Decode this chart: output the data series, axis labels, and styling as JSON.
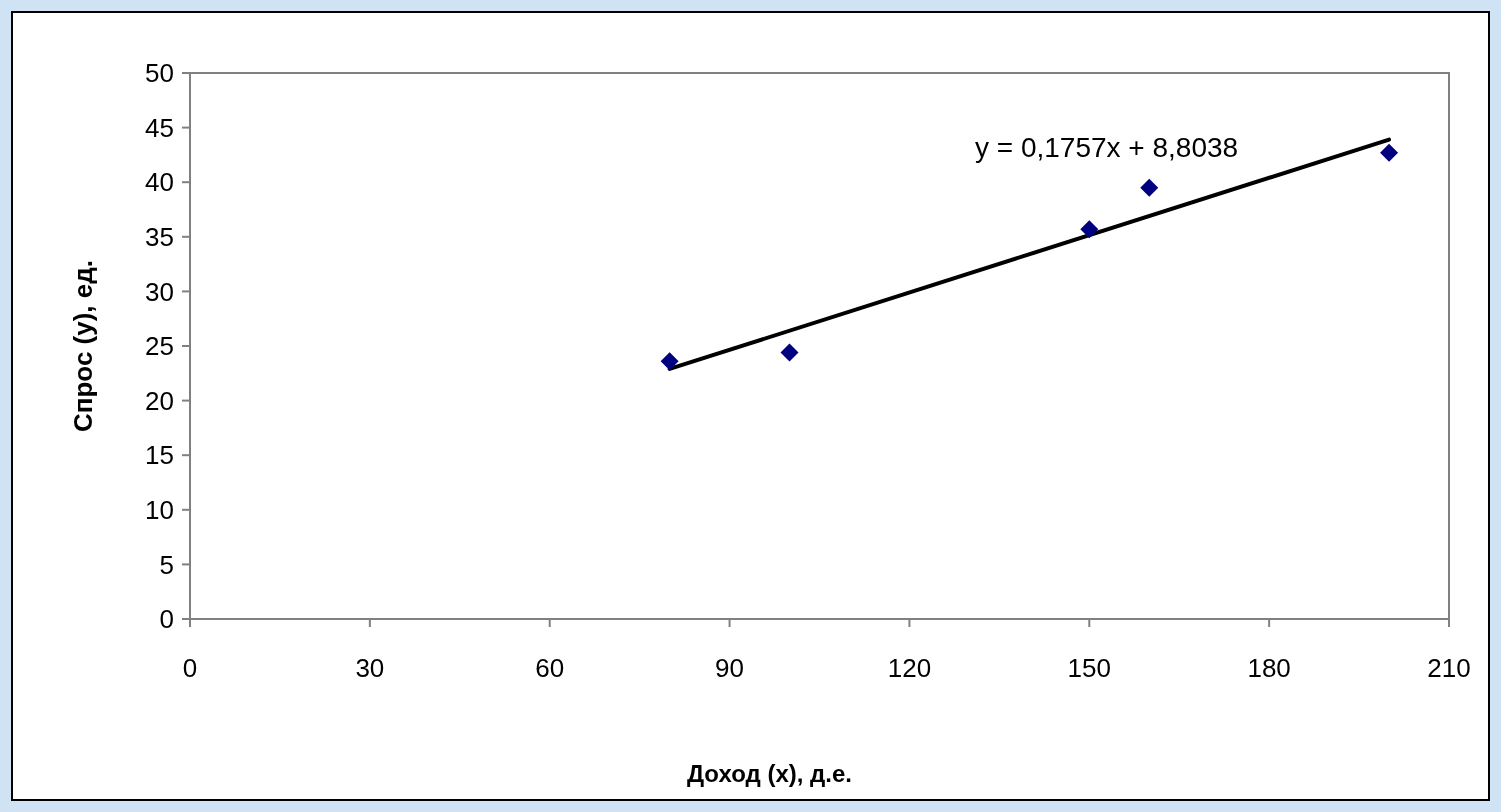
{
  "chart_data": {
    "type": "scatter",
    "xlabel": "Доход (x), д.е.",
    "ylabel": "Спрос (y), ед.",
    "xlim": [
      0,
      210
    ],
    "xticks": [
      0,
      30,
      60,
      90,
      120,
      150,
      180,
      210
    ],
    "ylim": [
      0,
      50
    ],
    "yticks": [
      0,
      5,
      10,
      15,
      20,
      25,
      30,
      35,
      40,
      45,
      50
    ],
    "grid": false,
    "marker": "diamond",
    "annotations": [
      "y = 0,1757x + 8,8038"
    ],
    "series": [
      {
        "color": "#000080",
        "x": [
          80,
          100,
          150,
          160,
          200
        ],
        "values": [
          23.6,
          24.4,
          35.7,
          39.5,
          42.7
        ]
      },
      {
        "type": "line",
        "color": "#000000",
        "x": [
          80,
          200
        ],
        "values": [
          22.9,
          43.9
        ],
        "marker": "none",
        "line_style": "solid"
      }
    ]
  }
}
